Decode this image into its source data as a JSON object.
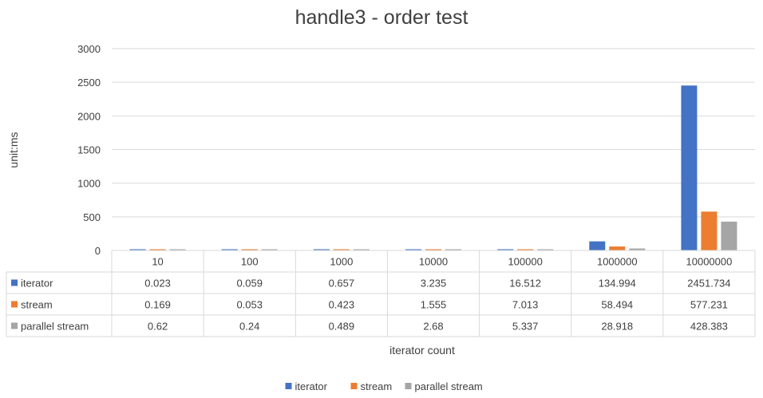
{
  "chart_data": {
    "type": "bar",
    "title": "handle3 - order test",
    "xlabel": "iterator count",
    "ylabel": "unit:ms",
    "ylim": [
      0,
      3000
    ],
    "yticks": [
      0,
      500,
      1000,
      1500,
      2000,
      2500,
      3000
    ],
    "categories": [
      "10",
      "100",
      "1000",
      "10000",
      "100000",
      "1000000",
      "10000000"
    ],
    "series": [
      {
        "name": "iterator",
        "color": "#4472C4",
        "values": [
          0.023,
          0.059,
          0.657,
          3.235,
          16.512,
          134.994,
          2451.734
        ],
        "labels": [
          "0.023",
          "0.059",
          "0.657",
          "3.235",
          "16.512",
          "134.994",
          "2451.734"
        ]
      },
      {
        "name": "stream",
        "color": "#ED7D31",
        "values": [
          0.169,
          0.053,
          0.423,
          1.555,
          7.013,
          58.494,
          577.231
        ],
        "labels": [
          "0.169",
          "0.053",
          "0.423",
          "1.555",
          "7.013",
          "58.494",
          "577.231"
        ]
      },
      {
        "name": "parallel stream",
        "color": "#A5A5A5",
        "values": [
          0.62,
          0.24,
          0.489,
          2.68,
          5.337,
          28.918,
          428.383
        ],
        "labels": [
          "0.62",
          "0.24",
          "0.489",
          "2.68",
          "5.337",
          "28.918",
          "428.383"
        ]
      }
    ],
    "grid": true,
    "data_table": true,
    "legend_position": "bottom"
  }
}
